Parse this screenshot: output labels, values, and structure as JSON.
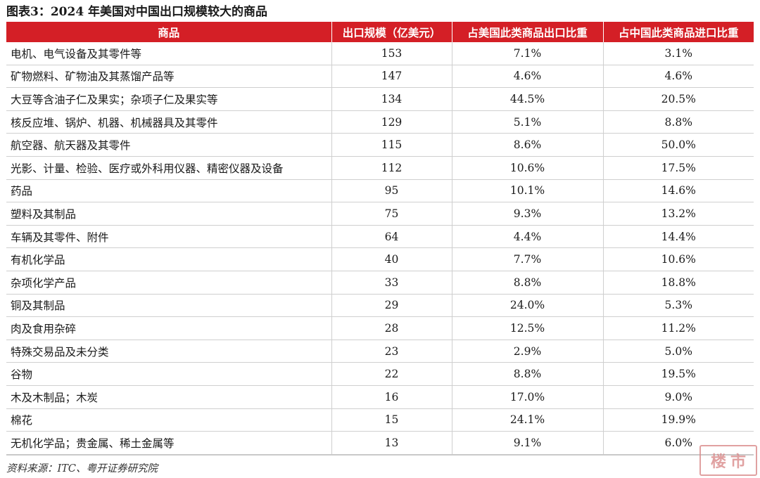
{
  "title": "图表3：2024 年美国对中国出口规模较大的商品",
  "table": {
    "headers": [
      "商品",
      "出口规模（亿美元）",
      "占美国此类商品出口比重",
      "占中国此类商品进口比重"
    ],
    "rows": [
      {
        "item": "电机、电气设备及其零件等",
        "export": "153",
        "us_share": "7.1%",
        "cn_share": "3.1%"
      },
      {
        "item": "矿物燃料、矿物油及其蒸馏产品等",
        "export": "147",
        "us_share": "4.6%",
        "cn_share": "4.6%"
      },
      {
        "item": "大豆等含油子仁及果实；杂项子仁及果实等",
        "export": "134",
        "us_share": "44.5%",
        "cn_share": "20.5%"
      },
      {
        "item": "核反应堆、锅炉、机器、机械器具及其零件",
        "export": "129",
        "us_share": "5.1%",
        "cn_share": "8.8%"
      },
      {
        "item": "航空器、航天器及其零件",
        "export": "115",
        "us_share": "8.6%",
        "cn_share": "50.0%"
      },
      {
        "item": "光影、计量、检验、医疗或外科用仪器、精密仪器及设备",
        "export": "112",
        "us_share": "10.6%",
        "cn_share": "17.5%"
      },
      {
        "item": "药品",
        "export": "95",
        "us_share": "10.1%",
        "cn_share": "14.6%"
      },
      {
        "item": "塑料及其制品",
        "export": "75",
        "us_share": "9.3%",
        "cn_share": "13.2%"
      },
      {
        "item": "车辆及其零件、附件",
        "export": "64",
        "us_share": "4.4%",
        "cn_share": "14.4%"
      },
      {
        "item": "有机化学品",
        "export": "40",
        "us_share": "7.7%",
        "cn_share": "10.6%"
      },
      {
        "item": "杂项化学产品",
        "export": "33",
        "us_share": "8.8%",
        "cn_share": "18.8%"
      },
      {
        "item": "铜及其制品",
        "export": "29",
        "us_share": "24.0%",
        "cn_share": "5.3%"
      },
      {
        "item": "肉及食用杂碎",
        "export": "28",
        "us_share": "12.5%",
        "cn_share": "11.2%"
      },
      {
        "item": "特殊交易品及未分类",
        "export": "23",
        "us_share": "2.9%",
        "cn_share": "5.0%"
      },
      {
        "item": "谷物",
        "export": "22",
        "us_share": "8.8%",
        "cn_share": "19.5%"
      },
      {
        "item": "木及木制品；木炭",
        "export": "16",
        "us_share": "17.0%",
        "cn_share": "9.0%"
      },
      {
        "item": "棉花",
        "export": "15",
        "us_share": "24.1%",
        "cn_share": "19.9%"
      },
      {
        "item": "无机化学品；贵金属、稀土金属等",
        "export": "13",
        "us_share": "9.1%",
        "cn_share": "6.0%"
      }
    ]
  },
  "source": "资料来源：ITC、粤开证券研究院",
  "watermark": {
    "chars": [
      "楼",
      "市"
    ],
    "color": "#d98a8a"
  }
}
